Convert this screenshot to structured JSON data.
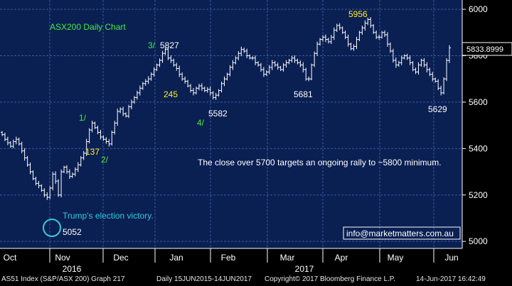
{
  "colors": {
    "background": "#0a1f52",
    "grid": "#3b5a9e",
    "price": "#ffffff",
    "green_label": "#44ee44",
    "yellow_label": "#ffee22",
    "cyan": "#33ccdd",
    "axis_text": "#ffffff"
  },
  "chart_data": {
    "type": "ohlc",
    "title": "ASX200 Daily Chart",
    "last_value_label": "5833.8999",
    "y_ticks": [
      "6000",
      "5800",
      "5600",
      "5400",
      "5200",
      "5000"
    ],
    "y_tick_values": [
      6000,
      5800,
      5600,
      5400,
      5200,
      5000
    ],
    "ylim": [
      4970,
      6040
    ],
    "month_labels": [
      "Oct",
      "Nov",
      "Dec",
      "Jan",
      "Feb",
      "Mar",
      "Apr",
      "May",
      "Jun"
    ],
    "year_labels": [
      "2016",
      "2017"
    ],
    "closes": [
      5460,
      5440,
      5425,
      5410,
      5430,
      5440,
      5420,
      5390,
      5360,
      5330,
      5300,
      5270,
      5250,
      5240,
      5220,
      5200,
      5190,
      5230,
      5290,
      5260,
      5200,
      5300,
      5320,
      5300,
      5280,
      5290,
      5310,
      5330,
      5360,
      5380,
      5430,
      5480,
      5510,
      5490,
      5470,
      5450,
      5440,
      5430,
      5420,
      5470,
      5510,
      5560,
      5570,
      5550,
      5540,
      5580,
      5600,
      5620,
      5640,
      5660,
      5680,
      5690,
      5700,
      5720,
      5740,
      5760,
      5780,
      5810,
      5827,
      5790,
      5780,
      5760,
      5745,
      5720,
      5700,
      5690,
      5670,
      5650,
      5640,
      5660,
      5670,
      5660,
      5650,
      5655,
      5640,
      5620,
      5630,
      5650,
      5680,
      5700,
      5720,
      5750,
      5770,
      5790,
      5810,
      5827,
      5820,
      5800,
      5790,
      5790,
      5770,
      5760,
      5740,
      5720,
      5730,
      5750,
      5770,
      5760,
      5750,
      5740,
      5760,
      5770,
      5780,
      5790,
      5780,
      5770,
      5760,
      5740,
      5700,
      5700,
      5760,
      5810,
      5850,
      5870,
      5880,
      5870,
      5860,
      5880,
      5910,
      5930,
      5920,
      5900,
      5880,
      5850,
      5830,
      5840,
      5870,
      5900,
      5920,
      5940,
      5956,
      5930,
      5900,
      5880,
      5880,
      5900,
      5890,
      5850,
      5820,
      5780,
      5760,
      5770,
      5790,
      5800,
      5790,
      5770,
      5740,
      5730,
      5760,
      5780,
      5760,
      5740,
      5720,
      5700,
      5690,
      5660,
      5640,
      5700,
      5780,
      5833.9
    ],
    "labels": [
      {
        "text": "5956",
        "color": "yellow"
      },
      {
        "text": "3/",
        "color": "green"
      },
      {
        "text": "5827",
        "color": "white"
      },
      {
        "text": "245",
        "color": "yellow"
      },
      {
        "text": "5582",
        "color": "white"
      },
      {
        "text": "4/",
        "color": "green"
      },
      {
        "text": "5681",
        "color": "white"
      },
      {
        "text": "5629",
        "color": "white"
      },
      {
        "text": "1/",
        "color": "green"
      },
      {
        "text": "137",
        "color": "yellow"
      },
      {
        "text": "2/",
        "color": "green"
      },
      {
        "text": "5052",
        "color": "white"
      },
      {
        "text": "Trump's election victory.",
        "color": "cyan"
      },
      {
        "text": "The close over 5700 targets an ongoing rally to ~5800 minimum.",
        "color": "white"
      },
      {
        "text": "info@marketmatters.com.au",
        "color": "white"
      }
    ],
    "grid": true
  },
  "footer": {
    "left": "AS51 Index (S&P/ASX 200) Graph 217",
    "mid": "Daily 15JUN2015-14JUN2017",
    "copyright": "Copyright© 2017 Bloomberg Finance L.P.",
    "timestamp": "14-Jun-2017 16:42:49"
  }
}
